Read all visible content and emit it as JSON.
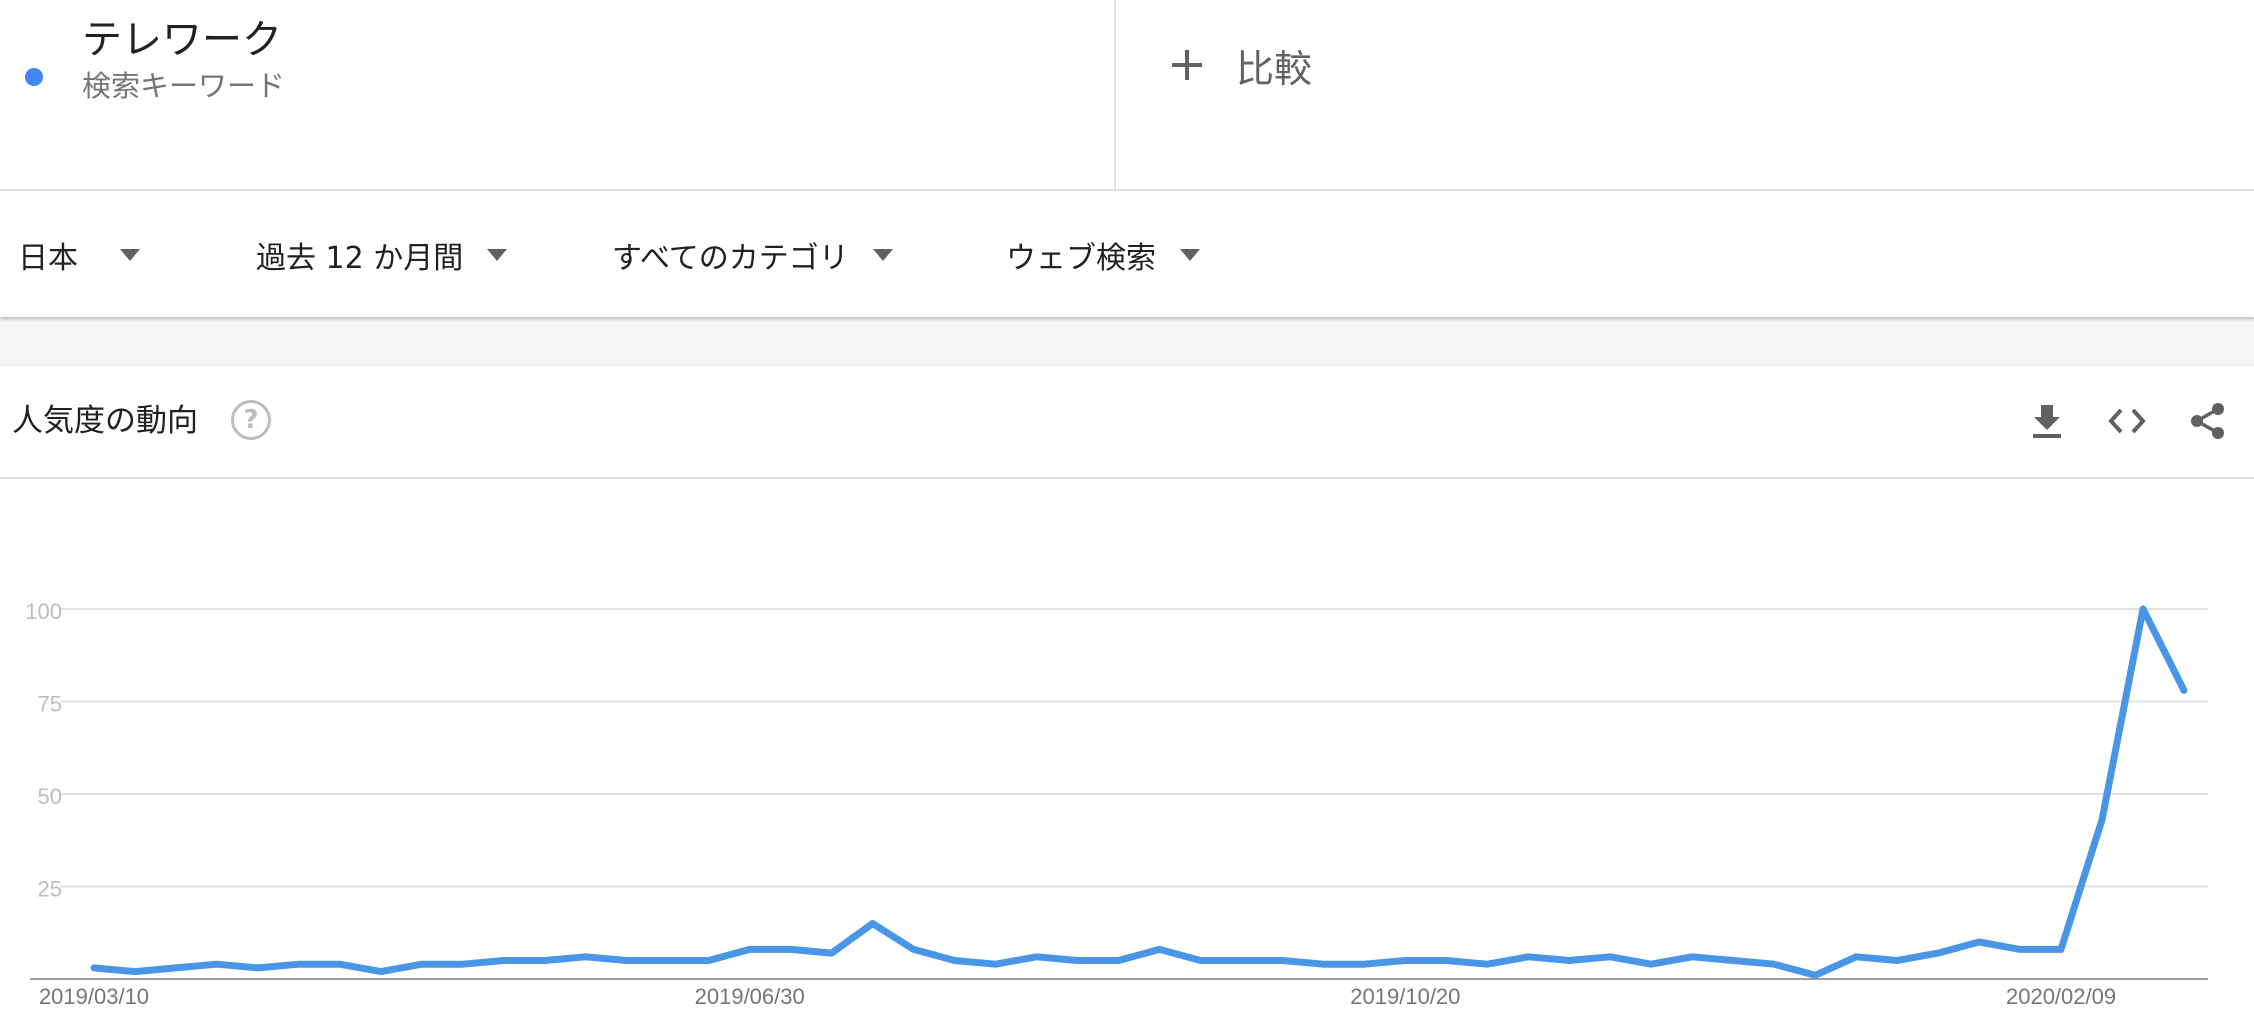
{
  "term": {
    "name": "テレワーク",
    "type": "検索キーワード",
    "color": "#4285f4"
  },
  "compare": {
    "label": "比較",
    "icon": "plus-icon"
  },
  "filters": [
    {
      "label": "日本",
      "icon": "caret-down-icon"
    },
    {
      "label": "過去 12 か月間",
      "icon": "caret-down-icon"
    },
    {
      "label": "すべてのカテゴリ",
      "icon": "caret-down-icon"
    },
    {
      "label": "ウェブ検索",
      "icon": "caret-down-icon"
    }
  ],
  "widget": {
    "title": "人気度の動向",
    "help_icon": "help-circle-icon",
    "help_glyph": "?",
    "tools": [
      "download-icon",
      "embed-code-icon",
      "share-icon"
    ]
  },
  "chart_data": {
    "type": "line",
    "title": "",
    "xlabel": "",
    "ylabel": "",
    "ylim": [
      0,
      100
    ],
    "yticks": [
      25,
      50,
      75,
      100
    ],
    "xtick_labels": [
      "2019/03/10",
      "2019/06/30",
      "2019/10/20",
      "2020/02/09"
    ],
    "grid": true,
    "legend": "none",
    "line_color": "#4a96e6",
    "series": [
      {
        "values": [
          3,
          2,
          3,
          4,
          3,
          4,
          4,
          2,
          4,
          4,
          5,
          5,
          6,
          5,
          5,
          5,
          8,
          8,
          7,
          15,
          8,
          5,
          4,
          6,
          5,
          5,
          8,
          5,
          5,
          5,
          4,
          4,
          5,
          5,
          4,
          6,
          5,
          6,
          4,
          6,
          5,
          4,
          1,
          6,
          5,
          7,
          10,
          8,
          8,
          43,
          100,
          78
        ]
      }
    ]
  }
}
